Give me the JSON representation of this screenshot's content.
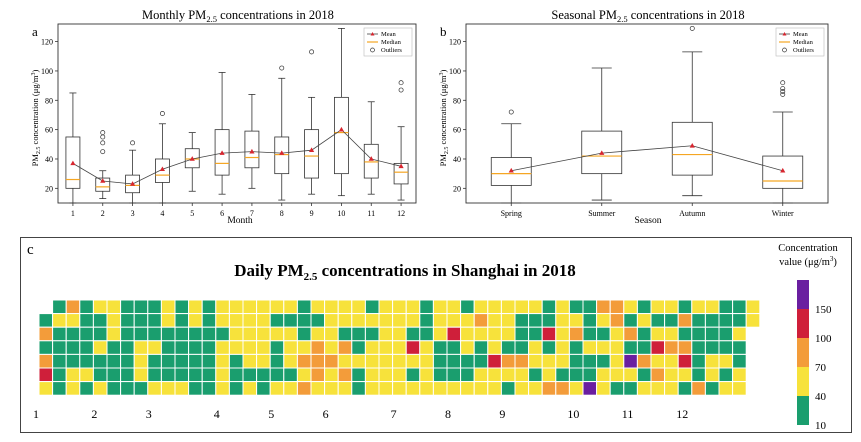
{
  "chart_data": [
    {
      "type": "box",
      "panel_label": "a",
      "title": "Monthly PM2.5 concentrations in 2018",
      "title_parts": {
        "pre": "Monthly PM",
        "sub": "2.5",
        "post": " concentrations in 2018"
      },
      "xlabel": "Month",
      "ylabel": "PM2.5 concentration (μg/m3)",
      "ylabel_parts": {
        "pre": "PM",
        "sub": "2.5",
        "mid": " concentration (μg/m",
        "sup": "3",
        "post": ")"
      },
      "ylim": [
        10,
        132
      ],
      "yticks": [
        20,
        40,
        60,
        80,
        100,
        120
      ],
      "categories": [
        "1",
        "2",
        "3",
        "4",
        "5",
        "6",
        "7",
        "8",
        "9",
        "10",
        "11",
        "12"
      ],
      "legend": [
        "Mean",
        "Median",
        "Outliers"
      ],
      "boxes": [
        {
          "min": 10,
          "q1": 20,
          "median": 26,
          "q3": 55,
          "max": 85,
          "mean": 37,
          "outliers": []
        },
        {
          "min": 13,
          "q1": 18,
          "median": 21,
          "q3": 27,
          "max": 32,
          "mean": 25,
          "outliers": [
            45,
            51,
            55,
            58
          ]
        },
        {
          "min": 10,
          "q1": 17,
          "median": 22,
          "q3": 29,
          "max": 46,
          "mean": 23,
          "outliers": [
            51
          ]
        },
        {
          "min": 10,
          "q1": 24,
          "median": 29,
          "q3": 40,
          "max": 64,
          "mean": 33,
          "outliers": [
            71
          ]
        },
        {
          "min": 18,
          "q1": 34,
          "median": 40,
          "q3": 47,
          "max": 58,
          "mean": 40,
          "outliers": []
        },
        {
          "min": 16,
          "q1": 29,
          "median": 37,
          "q3": 60,
          "max": 99,
          "mean": 44,
          "outliers": []
        },
        {
          "min": 20,
          "q1": 34,
          "median": 41,
          "q3": 59,
          "max": 84,
          "mean": 45,
          "outliers": []
        },
        {
          "min": 12,
          "q1": 30,
          "median": 43,
          "q3": 55,
          "max": 95,
          "mean": 44,
          "outliers": [
            102
          ]
        },
        {
          "min": 16,
          "q1": 27,
          "median": 42,
          "q3": 60,
          "max": 82,
          "mean": 46,
          "outliers": [
            113
          ]
        },
        {
          "min": 15,
          "q1": 30,
          "median": 58,
          "q3": 82,
          "max": 129,
          "mean": 60,
          "outliers": []
        },
        {
          "min": 16,
          "q1": 27,
          "median": 38,
          "q3": 50,
          "max": 79,
          "mean": 40,
          "outliers": []
        },
        {
          "min": 12,
          "q1": 23,
          "median": 31,
          "q3": 37,
          "max": 62,
          "mean": 35,
          "outliers": [
            87,
            92
          ]
        }
      ]
    },
    {
      "type": "box",
      "panel_label": "b",
      "title": "Seasonal PM2.5 concentrations in 2018",
      "title_parts": {
        "pre": "Seasonal PM",
        "sub": "2.5",
        "post": " concentrations in 2018"
      },
      "xlabel": "Season",
      "ylabel": "PM2.5 concentration (μg/m3)",
      "ylabel_parts": {
        "pre": "PM",
        "sub": "2.5",
        "mid": " concentration (μg/m",
        "sup": "3",
        "post": ")"
      },
      "ylim": [
        10,
        132
      ],
      "yticks": [
        20,
        40,
        60,
        80,
        100,
        120
      ],
      "categories": [
        "Spring",
        "Summer",
        "Autumn",
        "Winter"
      ],
      "legend": [
        "Mean",
        "Median",
        "Outliers"
      ],
      "boxes": [
        {
          "min": 10,
          "q1": 22,
          "median": 30,
          "q3": 41,
          "max": 64,
          "mean": 32,
          "outliers": [
            72
          ]
        },
        {
          "min": 12,
          "q1": 30,
          "median": 42,
          "q3": 59,
          "max": 102,
          "mean": 44,
          "outliers": []
        },
        {
          "min": 15,
          "q1": 29,
          "median": 43,
          "q3": 65,
          "max": 113,
          "mean": 49,
          "outliers": [
            129
          ]
        },
        {
          "min": 10,
          "q1": 20,
          "median": 25,
          "q3": 42,
          "max": 72,
          "mean": 32,
          "outliers": [
            84,
            86,
            88,
            92
          ]
        }
      ]
    },
    {
      "type": "heatmap",
      "panel_label": "c",
      "title": "Daily PM2.5 concentrations in Shanghai in 2018",
      "title_parts": {
        "pre": "Daily PM",
        "sub": "2.5",
        "post": " concentrations in Shanghai in 2018"
      },
      "month_labels": [
        "1",
        "2",
        "3",
        "4",
        "5",
        "6",
        "7",
        "8",
        "9",
        "10",
        "11",
        "12"
      ],
      "colorbar_title": "Concentration",
      "colorbar_subtitle": "value (μg/m3)",
      "colorbar_subtitle_parts": {
        "pre": "value (μg/m",
        "sup": "3",
        "post": ")"
      },
      "colorbar_ticks": [
        "10",
        "40",
        "70",
        "100",
        "150"
      ],
      "levels": [
        {
          "label": "10-40",
          "color": "#1a9e6e"
        },
        {
          "label": "40-70",
          "color": "#f7e23b"
        },
        {
          "label": "70-100",
          "color": "#f39c3a"
        },
        {
          "label": "100-150",
          "color": "#cf1f3a"
        },
        {
          "label": ">150",
          "color": "#6a1fa0"
        }
      ],
      "start_weekday": 1,
      "days_in_month": [
        31,
        28,
        31,
        30,
        31,
        30,
        31,
        31,
        30,
        31,
        30,
        31
      ],
      "daily_level": "0202310100000210001100000101001001111000000000000001110000100111000010000001110000000000001101111111100011111011111100101000110111010001212101222111112111102121110010001011111111111111111111031010001111111000111300010111001121001111113111110210100021110011010030112111110201200010001004210101122111101020410010020110131211012111"
    }
  ]
}
